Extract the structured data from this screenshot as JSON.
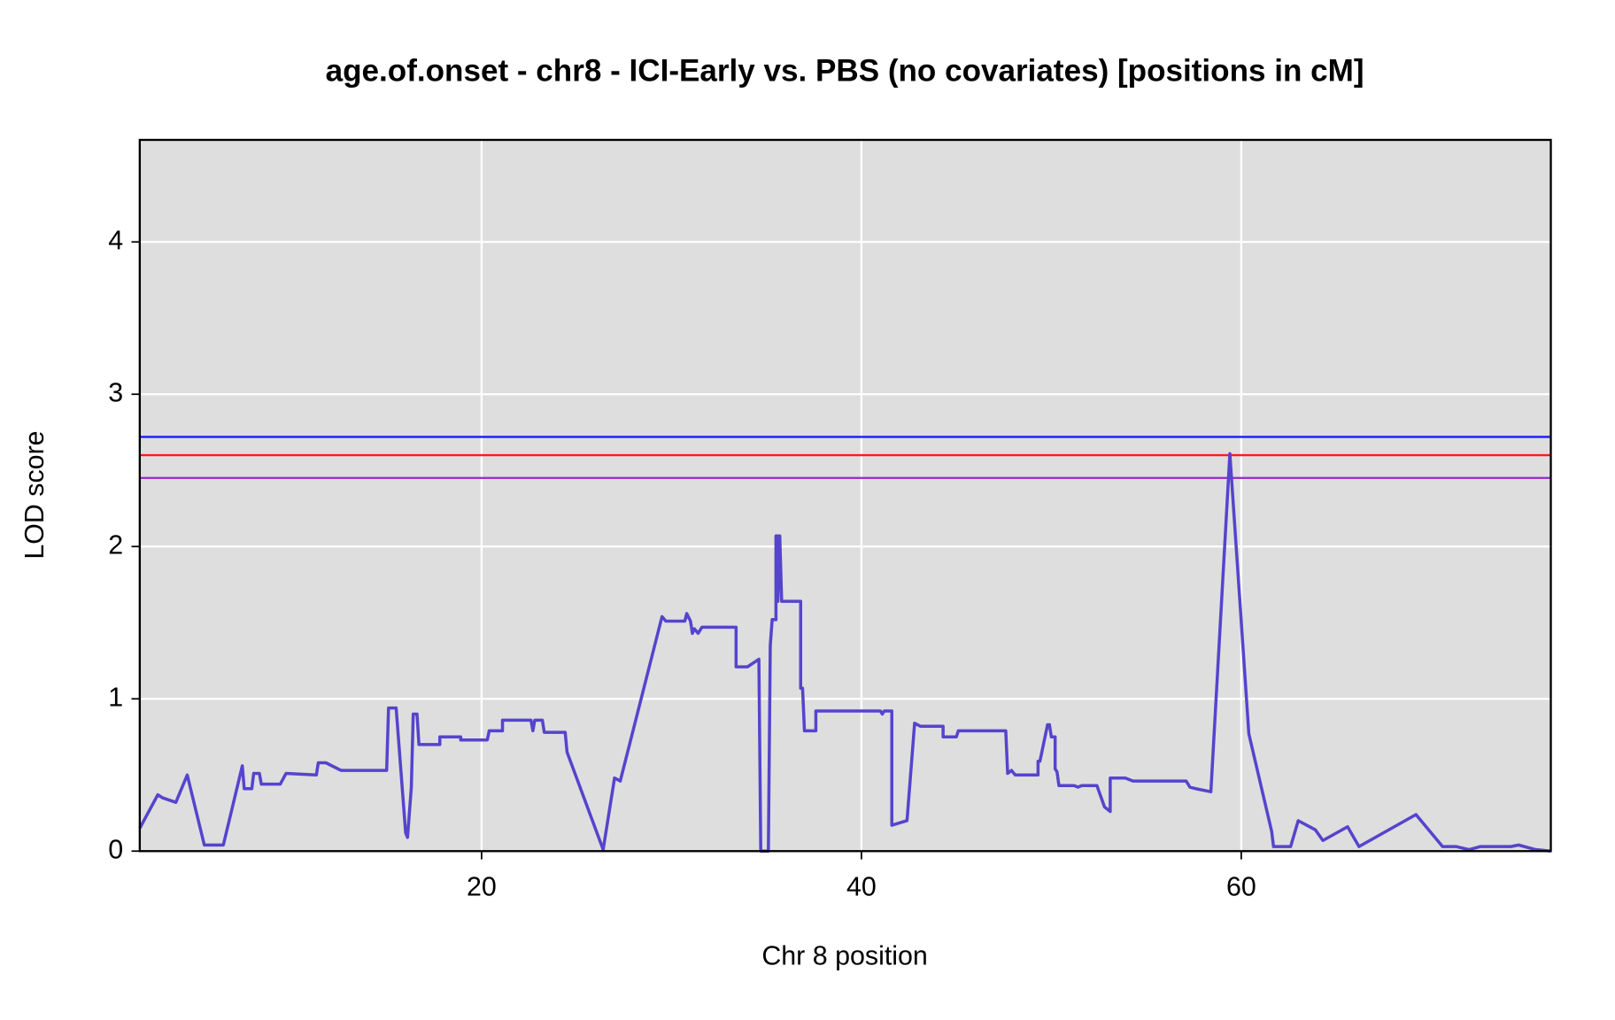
{
  "chart_data": {
    "type": "line",
    "title": "age.of.onset - chr8 - ICI-Early vs. PBS (no covariates) [positions in cM]",
    "xlabel": "Chr 8 position",
    "ylabel": "LOD score",
    "xlim": [
      2.0,
      76.3
    ],
    "ylim": [
      0,
      4.67
    ],
    "xticks": [
      20,
      40,
      60
    ],
    "yticks": [
      0,
      1,
      2,
      3,
      4
    ],
    "grid": true,
    "hlines": [
      {
        "value": 2.72,
        "color": "#1a1aff"
      },
      {
        "value": 2.6,
        "color": "#ff1a1a"
      },
      {
        "value": 2.45,
        "color": "#9933cc"
      }
    ],
    "series": [
      {
        "color": "#5544cc",
        "x": [
          2.0,
          2.95,
          3.2,
          3.9,
          4.5,
          5.4,
          6.4,
          7.4,
          7.5,
          7.9,
          8.0,
          8.3,
          8.4,
          9.4,
          9.7,
          11.3,
          11.4,
          11.8,
          12.6,
          15.0,
          15.1,
          15.5,
          16.0,
          16.1,
          16.3,
          16.4,
          16.6,
          16.7,
          17.8,
          17.8,
          18.9,
          18.9,
          20.3,
          20.4,
          21.1,
          21.1,
          22.6,
          22.7,
          22.8,
          23.2,
          23.3,
          24.4,
          24.5,
          26.4,
          27.0,
          27.3,
          29.5,
          29.7,
          30.7,
          30.8,
          31.0,
          31.1,
          31.2,
          31.4,
          31.6,
          33.4,
          33.4,
          34.0,
          34.6,
          34.7,
          35.1,
          35.2,
          35.3,
          35.5,
          35.5,
          35.6,
          35.6,
          35.7,
          35.8,
          36.8,
          36.8,
          36.9,
          37.0,
          37.6,
          37.6,
          41.0,
          41.1,
          41.2,
          41.6,
          41.6,
          42.4,
          42.8,
          43.1,
          44.3,
          44.3,
          45.0,
          45.1,
          47.6,
          47.7,
          47.9,
          48.1,
          49.3,
          49.3,
          49.4,
          49.8,
          49.9,
          50.0,
          50.2,
          50.2,
          50.3,
          50.4,
          51.2,
          51.4,
          51.6,
          52.4,
          52.8,
          53.1,
          53.1,
          53.9,
          54.3,
          57.1,
          57.3,
          57.6,
          58.4,
          59.4,
          60.4,
          61.6,
          61.7,
          62.6,
          63.0,
          63.9,
          64.3,
          65.6,
          66.2,
          69.2,
          70.6,
          71.3,
          72.0,
          72.6,
          74.2,
          74.6,
          75.5,
          76.3
        ],
        "values": [
          0.15,
          0.37,
          0.35,
          0.32,
          0.5,
          0.04,
          0.04,
          0.56,
          0.41,
          0.41,
          0.51,
          0.51,
          0.44,
          0.44,
          0.51,
          0.5,
          0.58,
          0.58,
          0.53,
          0.53,
          0.94,
          0.94,
          0.12,
          0.09,
          0.42,
          0.9,
          0.9,
          0.7,
          0.7,
          0.75,
          0.75,
          0.73,
          0.73,
          0.79,
          0.79,
          0.86,
          0.86,
          0.79,
          0.86,
          0.86,
          0.78,
          0.78,
          0.65,
          0.01,
          0.48,
          0.46,
          1.54,
          1.51,
          1.51,
          1.56,
          1.51,
          1.43,
          1.46,
          1.43,
          1.47,
          1.47,
          1.21,
          1.21,
          1.26,
          0.0,
          0.0,
          1.35,
          1.52,
          1.52,
          2.07,
          2.07,
          1.64,
          2.07,
          1.64,
          1.64,
          1.07,
          1.07,
          0.79,
          0.79,
          0.92,
          0.92,
          0.9,
          0.92,
          0.92,
          0.17,
          0.2,
          0.84,
          0.82,
          0.82,
          0.75,
          0.75,
          0.79,
          0.79,
          0.51,
          0.53,
          0.5,
          0.5,
          0.59,
          0.59,
          0.83,
          0.83,
          0.75,
          0.75,
          0.54,
          0.52,
          0.43,
          0.43,
          0.42,
          0.43,
          0.43,
          0.29,
          0.26,
          0.48,
          0.48,
          0.46,
          0.46,
          0.42,
          0.41,
          0.39,
          2.61,
          0.77,
          0.13,
          0.03,
          0.03,
          0.2,
          0.14,
          0.07,
          0.16,
          0.03,
          0.24,
          0.03,
          0.03,
          0.01,
          0.03,
          0.03,
          0.04,
          0.01,
          0.0
        ]
      }
    ]
  }
}
